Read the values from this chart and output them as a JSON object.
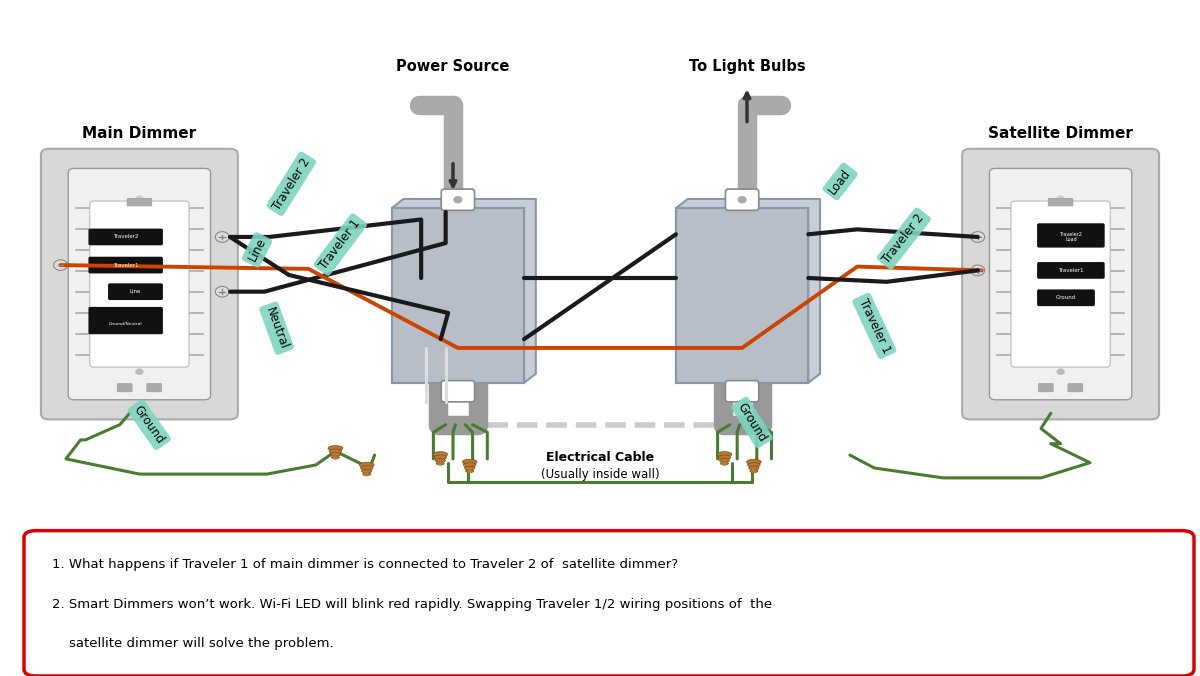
{
  "bg_color": "#ffffff",
  "wire_black": "#1a1a1a",
  "wire_green": "#4a7c30",
  "wire_red": "#cc4400",
  "wire_white": "#dddddd",
  "wire_gray": "#888888",
  "label_teal": "#7dd4c0",
  "dimmer_outer": "#c8c8c8",
  "dimmer_inner_bg": "#d8d8d8",
  "switch_body": "#f0f0f0",
  "switch_face": "#ffffff",
  "jbox_fill": "#b8bec8",
  "jbox_edge": "#8898a8",
  "note_border": "#dd0000",
  "wire_nut_color": "#b87832",
  "main_dimmer_label": "Main Dimmer",
  "satellite_dimmer_label": "Satellite Dimmer",
  "power_source_label": "Power Source",
  "light_bulbs_label": "To Light Bulbs",
  "elec_cable_label1": "Electrical Cable",
  "elec_cable_label2": "(Usually inside wall)",
  "note_line1": "1. What happens if Traveler 1 of main dimmer is connected to Traveler 2 of  satellite dimmer?",
  "note_line2": "2. Smart Dimmers won’t work. Wi-Fi LED will blink red rapidly. Swapping Traveler 1/2 wiring positions of  the",
  "note_line3": "    satellite dimmer will solve the problem."
}
